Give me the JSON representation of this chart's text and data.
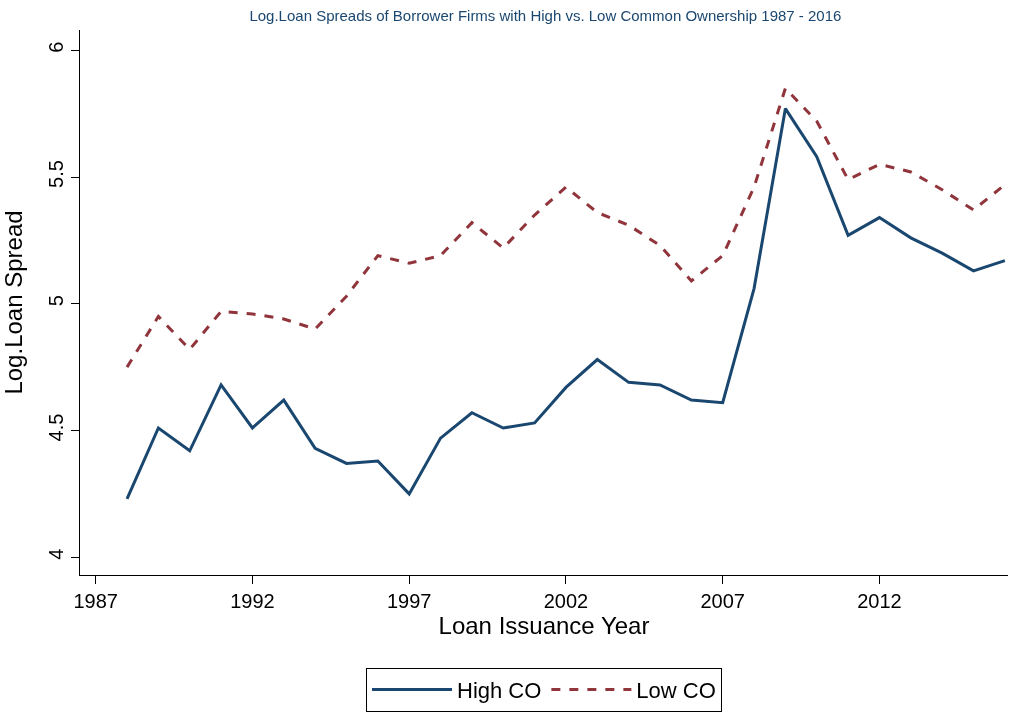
{
  "chart_data": {
    "type": "line",
    "title": "Log.Loan Spreads of Borrower Firms with High vs. Low Common Ownership 1987 - 2016",
    "xlabel": "Loan Issuance Year",
    "ylabel": "Log.Loan Spread",
    "x": [
      1988,
      1989,
      1990,
      1991,
      1992,
      1993,
      1994,
      1995,
      1996,
      1997,
      1998,
      1999,
      2000,
      2001,
      2002,
      2003,
      2004,
      2005,
      2006,
      2007,
      2008,
      2009,
      2010,
      2011,
      2012,
      2013,
      2014,
      2015,
      2016
    ],
    "series": [
      {
        "name": "High CO",
        "color": "#1a476f",
        "line_style": "solid",
        "values": [
          4.23,
          4.51,
          4.42,
          4.68,
          4.51,
          4.62,
          4.43,
          4.37,
          4.38,
          4.25,
          4.47,
          4.57,
          4.51,
          4.53,
          4.67,
          4.78,
          4.69,
          4.68,
          4.62,
          4.61,
          5.06,
          5.77,
          5.58,
          5.27,
          5.34,
          5.26,
          5.2,
          5.13,
          5.17
        ]
      },
      {
        "name": "Low CO",
        "color": "#90353b",
        "line_style": "dashed",
        "values": [
          4.75,
          4.95,
          4.82,
          4.97,
          4.96,
          4.94,
          4.9,
          5.03,
          5.19,
          5.16,
          5.19,
          5.32,
          5.22,
          5.35,
          5.46,
          5.36,
          5.31,
          5.23,
          5.09,
          5.19,
          5.46,
          5.85,
          5.72,
          5.49,
          5.55,
          5.52,
          5.45,
          5.37,
          5.47
        ]
      }
    ],
    "xlim": [
      1986.5,
      2016.1
    ],
    "xticks": [
      1987,
      1992,
      1997,
      2002,
      2007,
      2012
    ],
    "ylim": [
      3.93,
      6.08
    ],
    "yticks": [
      4,
      4.5,
      5,
      5.5,
      6
    ],
    "legend": "bottom",
    "marker": "none"
  }
}
